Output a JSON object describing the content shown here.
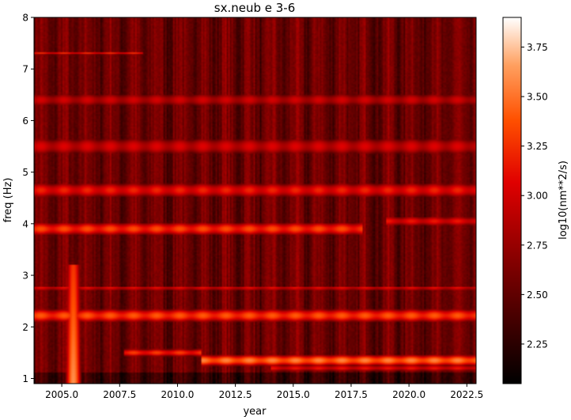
{
  "chart_data": {
    "type": "heatmap",
    "title": "sx.neub e 3-6",
    "xlabel": "year",
    "ylabel": "freq (Hz)",
    "colorbar_label": "log10(nm**2/s)",
    "colormap": "gist_heat",
    "xlim": [
      2003.8,
      2022.9
    ],
    "ylim": [
      0.9,
      8
    ],
    "x_ticks": [
      2005,
      2007.5,
      2010,
      2012.5,
      2015,
      2017.5,
      2020,
      2022.5
    ],
    "x_tick_labels": [
      "2005.0",
      "2007.5",
      "2010.0",
      "2012.5",
      "2015.0",
      "2017.5",
      "2020.0",
      "2022.5"
    ],
    "y_ticks": [
      1,
      2,
      3,
      4,
      5,
      6,
      7,
      8
    ],
    "y_tick_labels": [
      "1",
      "2",
      "3",
      "4",
      "5",
      "6",
      "7",
      "8"
    ],
    "clim": [
      2.05,
      3.9
    ],
    "colorbar_ticks": [
      2.25,
      2.5,
      2.75,
      3.0,
      3.25,
      3.5,
      3.75
    ],
    "colorbar_tick_labels": [
      "2.25",
      "2.50",
      "2.75",
      "3.00",
      "3.25",
      "3.50",
      "3.75"
    ],
    "base_level": 2.55,
    "frequency_bands": [
      {
        "freq": 1.35,
        "width": 0.08,
        "level": 3.45,
        "from": 2011.0,
        "to": 2022.9
      },
      {
        "freq": 1.5,
        "width": 0.06,
        "level": 3.2,
        "from": 2007.7,
        "to": 2011.0
      },
      {
        "freq": 1.2,
        "width": 0.05,
        "level": 3.05,
        "from": 2014.0,
        "to": 2022.9
      },
      {
        "freq": 2.22,
        "width": 0.1,
        "level": 3.3,
        "from": 2003.8,
        "to": 2022.9
      },
      {
        "freq": 2.75,
        "width": 0.03,
        "level": 3.05,
        "from": 2003.8,
        "to": 2022.9
      },
      {
        "freq": 3.9,
        "width": 0.1,
        "level": 3.25,
        "from": 2003.8,
        "to": 2018.0
      },
      {
        "freq": 4.05,
        "width": 0.08,
        "level": 3.05,
        "from": 2019.0,
        "to": 2022.9
      },
      {
        "freq": 4.65,
        "width": 0.12,
        "level": 3.1,
        "from": 2003.8,
        "to": 2022.9
      },
      {
        "freq": 5.5,
        "width": 0.15,
        "level": 2.95,
        "from": 2003.8,
        "to": 2022.9
      },
      {
        "freq": 6.4,
        "width": 0.12,
        "level": 2.9,
        "from": 2003.8,
        "to": 2022.9
      },
      {
        "freq": 7.3,
        "width": 0.02,
        "level": 3.2,
        "from": 2003.8,
        "to": 2008.5
      }
    ],
    "broadband_event": {
      "year": 2005.5,
      "width": 0.25,
      "fmax": 3.2,
      "level": 3.6
    }
  }
}
